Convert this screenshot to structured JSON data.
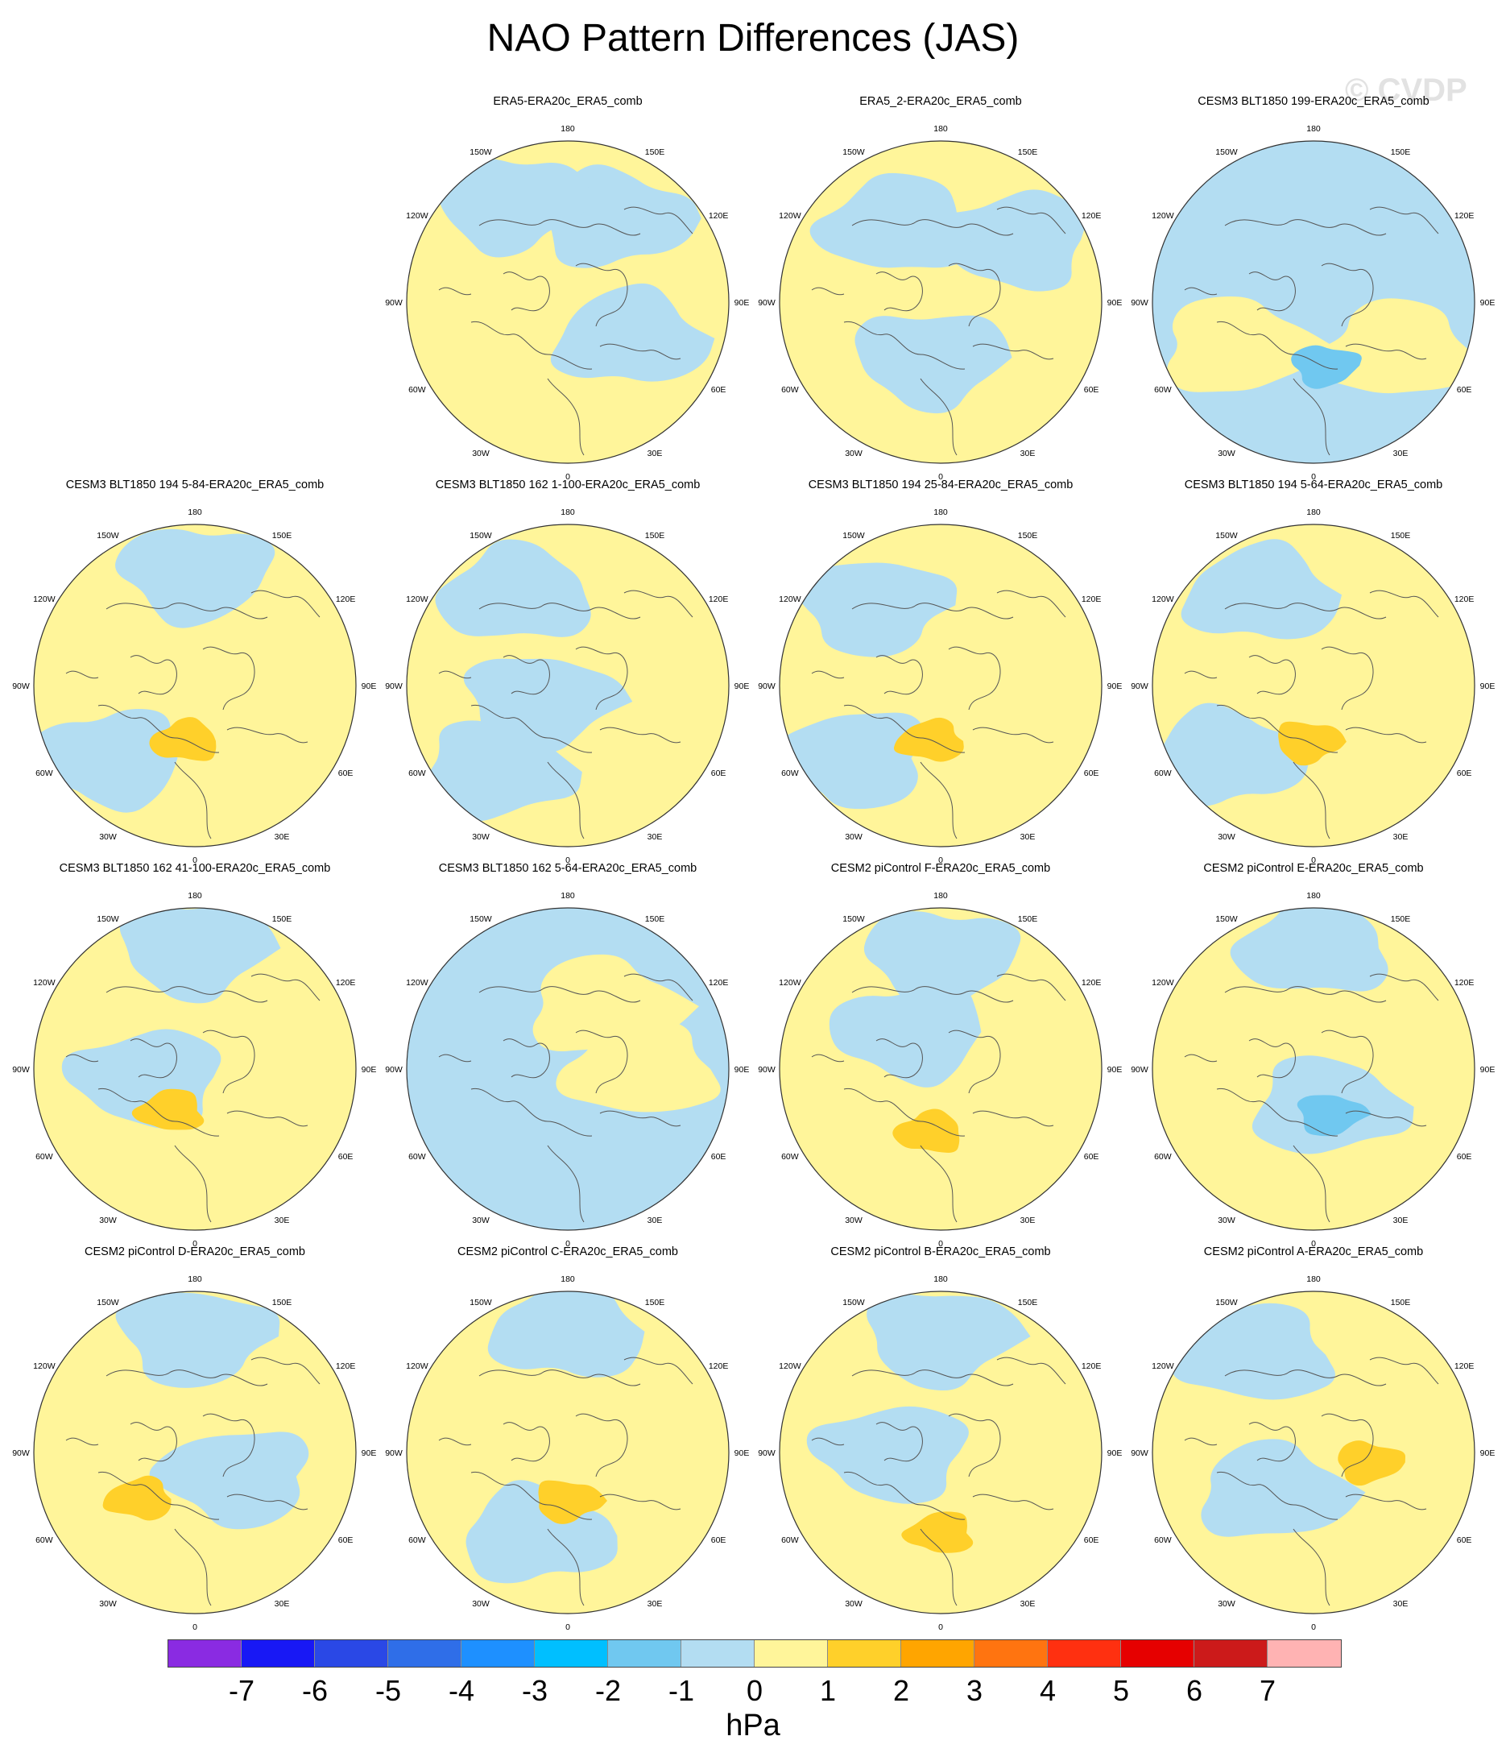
{
  "title": "NAO Pattern Differences (JAS)",
  "watermark": "© CVDP",
  "colorbar": {
    "units": "hPa",
    "ticks": [
      "-7",
      "-6",
      "-5",
      "-4",
      "-3",
      "-2",
      "-1",
      "0",
      "1",
      "2",
      "3",
      "4",
      "5",
      "6",
      "7"
    ],
    "colors": [
      "#8a2be2",
      "#1818f5",
      "#2a48e6",
      "#2f6ee8",
      "#1e90ff",
      "#00bfff",
      "#70c8f0",
      "#b3ddf2",
      "#fff59a",
      "#ffd02a",
      "#ffa500",
      "#ff7410",
      "#ff3010",
      "#e60000",
      "#cc1a1a",
      "#ffb3b3"
    ]
  },
  "map_labels": {
    "lon": [
      "180",
      "150E",
      "120E",
      "90E",
      "60E",
      "30E",
      "0",
      "30W",
      "60W",
      "90W",
      "120W",
      "150W"
    ]
  },
  "panels": [
    {
      "title": "ERA5-ERA20c_ERA5_comb",
      "base": "pos",
      "anoms": [
        {
          "sign": "neg",
          "lon": 60,
          "dist": 0.45
        },
        {
          "sign": "neg",
          "lon": 150,
          "dist": 0.6
        },
        {
          "sign": "neg",
          "lon": -150,
          "dist": 0.72
        }
      ]
    },
    {
      "title": "ERA5_2-ERA20c_ERA5_comb",
      "base": "pos",
      "anoms": [
        {
          "sign": "neg",
          "lon": -10,
          "dist": 0.35
        },
        {
          "sign": "neg",
          "lon": 130,
          "dist": 0.6
        },
        {
          "sign": "neg",
          "lon": -150,
          "dist": 0.55
        }
      ]
    },
    {
      "title": "CESM3 BLT1850 199-ERA20c_ERA5_comb",
      "base": "neg",
      "anoms": [
        {
          "sign": "pos",
          "lon": 60,
          "dist": 0.6
        },
        {
          "sign": "pos",
          "lon": -60,
          "dist": 0.55
        },
        {
          "sign": "neg2",
          "lon": 10,
          "dist": 0.4
        }
      ]
    },
    {
      "title": "CESM3 BLT1850 194 5-84-ERA20c_ERA5_comb",
      "base": "pos",
      "anoms": [
        {
          "sign": "neg",
          "lon": 180,
          "dist": 0.7
        },
        {
          "sign": "neg",
          "lon": -50,
          "dist": 0.7
        },
        {
          "sign": "pos2",
          "lon": -10,
          "dist": 0.35
        }
      ]
    },
    {
      "title": "CESM3 BLT1850 162 1-100-ERA20c_ERA5_comb",
      "base": "pos",
      "anoms": [
        {
          "sign": "neg",
          "lon": -150,
          "dist": 0.65
        },
        {
          "sign": "neg",
          "lon": -40,
          "dist": 0.7
        },
        {
          "sign": "neg",
          "lon": -60,
          "dist": 0.2
        }
      ]
    },
    {
      "title": "CESM3 BLT1850 194 25-84-ERA20c_ERA5_comb",
      "base": "pos",
      "anoms": [
        {
          "sign": "neg",
          "lon": -140,
          "dist": 0.65
        },
        {
          "sign": "neg",
          "lon": -50,
          "dist": 0.7
        },
        {
          "sign": "pos2",
          "lon": -10,
          "dist": 0.35
        }
      ]
    },
    {
      "title": "CESM3 BLT1850 194 5-64-ERA20c_ERA5_comb",
      "base": "pos",
      "anoms": [
        {
          "sign": "neg",
          "lon": -150,
          "dist": 0.65
        },
        {
          "sign": "neg",
          "lon": -50,
          "dist": 0.7
        },
        {
          "sign": "pos2",
          "lon": -5,
          "dist": 0.35
        }
      ]
    },
    {
      "title": "CESM3 BLT1850 162 41-100-ERA20c_ERA5_comb",
      "base": "pos",
      "anoms": [
        {
          "sign": "neg",
          "lon": 180,
          "dist": 0.75
        },
        {
          "sign": "neg",
          "lon": -80,
          "dist": 0.3
        },
        {
          "sign": "pos2",
          "lon": -30,
          "dist": 0.3
        }
      ]
    },
    {
      "title": "CESM3 BLT1850 162 5-64-ERA20c_ERA5_comb",
      "base": "neg",
      "anoms": [
        {
          "sign": "pos",
          "lon": 90,
          "dist": 0.45
        },
        {
          "sign": "pos",
          "lon": 150,
          "dist": 0.45
        }
      ]
    },
    {
      "title": "CESM2 piControl F-ERA20c_ERA5_comb",
      "base": "pos",
      "anoms": [
        {
          "sign": "neg",
          "lon": 180,
          "dist": 0.7
        },
        {
          "sign": "neg",
          "lon": -140,
          "dist": 0.3
        },
        {
          "sign": "pos2",
          "lon": -10,
          "dist": 0.4
        }
      ]
    },
    {
      "title": "CESM2 piControl E-ERA20c_ERA5_comb",
      "base": "pos",
      "anoms": [
        {
          "sign": "neg",
          "lon": 180,
          "dist": 0.75
        },
        {
          "sign": "neg",
          "lon": 20,
          "dist": 0.25
        },
        {
          "sign": "neg2",
          "lon": 20,
          "dist": 0.3
        }
      ]
    },
    {
      "title": "CESM2 piControl D-ERA20c_ERA5_comb",
      "base": "pos",
      "anoms": [
        {
          "sign": "neg",
          "lon": 180,
          "dist": 0.72
        },
        {
          "sign": "neg",
          "lon": 60,
          "dist": 0.3
        },
        {
          "sign": "pos2",
          "lon": -50,
          "dist": 0.45
        }
      ]
    },
    {
      "title": "CESM2 piControl C-ERA20c_ERA5_comb",
      "base": "pos",
      "anoms": [
        {
          "sign": "neg",
          "lon": 180,
          "dist": 0.75
        },
        {
          "sign": "neg",
          "lon": -20,
          "dist": 0.55
        },
        {
          "sign": "pos2",
          "lon": 0,
          "dist": 0.3
        }
      ]
    },
    {
      "title": "CESM2 piControl B-ERA20c_ERA5_comb",
      "base": "pos",
      "anoms": [
        {
          "sign": "neg",
          "lon": 180,
          "dist": 0.72
        },
        {
          "sign": "neg",
          "lon": -90,
          "dist": 0.3
        },
        {
          "sign": "pos2",
          "lon": 0,
          "dist": 0.5
        }
      ]
    },
    {
      "title": "CESM2 piControl A-ERA20c_ERA5_comb",
      "base": "pos",
      "anoms": [
        {
          "sign": "neg",
          "lon": -150,
          "dist": 0.7
        },
        {
          "sign": "neg",
          "lon": -45,
          "dist": 0.35
        },
        {
          "sign": "pos2",
          "lon": 80,
          "dist": 0.35
        }
      ]
    }
  ]
}
